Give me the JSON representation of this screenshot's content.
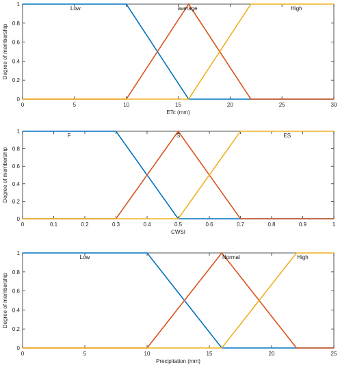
{
  "chart_data": [
    {
      "type": "line",
      "xlabel": "ETc (mm)",
      "ylabel": "Degree of membership",
      "xlim": [
        0,
        30
      ],
      "ylim": [
        0,
        1
      ],
      "xticks": [
        "0",
        "5",
        "10",
        "15",
        "20",
        "25",
        "30"
      ],
      "yticks": [
        "0",
        "0.2",
        "0.4",
        "0.6",
        "0.8",
        "1"
      ],
      "grid": false,
      "series": [
        {
          "name": "Low",
          "color": "#0072BD",
          "x": [
            0,
            10,
            16,
            30
          ],
          "y": [
            1,
            1,
            0,
            0
          ]
        },
        {
          "name": "average",
          "color": "#D95319",
          "x": [
            0,
            10,
            16,
            22,
            30
          ],
          "y": [
            0,
            0,
            1,
            0,
            0
          ]
        },
        {
          "name": "High",
          "color": "#EDB120",
          "x": [
            0,
            16,
            22,
            30
          ],
          "y": [
            0,
            0,
            1,
            1
          ]
        }
      ]
    },
    {
      "type": "line",
      "xlabel": "CWSI",
      "ylabel": "Degree of membership",
      "xlim": [
        0,
        1
      ],
      "ylim": [
        0,
        1
      ],
      "xticks": [
        "0",
        "0.1",
        "0.2",
        "0.3",
        "0.4",
        "0.5",
        "0.6",
        "0.7",
        "0.8",
        "0.9",
        "1"
      ],
      "yticks": [
        "0",
        "0.2",
        "0.4",
        "0.6",
        "0.8",
        "1"
      ],
      "grid": false,
      "series": [
        {
          "name": "F",
          "color": "#0072BD",
          "x": [
            0,
            0.3,
            0.5,
            1
          ],
          "y": [
            1,
            1,
            0,
            0
          ]
        },
        {
          "name": "S",
          "color": "#D95319",
          "x": [
            0,
            0.3,
            0.5,
            0.7,
            1
          ],
          "y": [
            0,
            0,
            1,
            0,
            0
          ]
        },
        {
          "name": "ES",
          "color": "#EDB120",
          "x": [
            0,
            0.5,
            0.7,
            1
          ],
          "y": [
            0,
            0,
            1,
            1
          ]
        }
      ]
    },
    {
      "type": "line",
      "xlabel": "Precipitation (mm)",
      "ylabel": "Degree of membership",
      "xlim": [
        0,
        25
      ],
      "ylim": [
        0,
        1
      ],
      "xticks": [
        "0",
        "5",
        "10",
        "15",
        "20",
        "25"
      ],
      "yticks": [
        "0",
        "0.2",
        "0.4",
        "0.6",
        "0.8",
        "1"
      ],
      "grid": false,
      "series": [
        {
          "name": "Low",
          "color": "#0072BD",
          "x": [
            0,
            10,
            16,
            25
          ],
          "y": [
            1,
            1,
            0,
            0
          ]
        },
        {
          "name": "Normal",
          "color": "#D95319",
          "x": [
            0,
            10,
            16,
            22,
            25
          ],
          "y": [
            0,
            0,
            1,
            0,
            0
          ]
        },
        {
          "name": "High",
          "color": "#EDB120",
          "x": [
            0,
            16,
            22,
            25
          ],
          "y": [
            0,
            0,
            1,
            1
          ]
        }
      ]
    }
  ]
}
